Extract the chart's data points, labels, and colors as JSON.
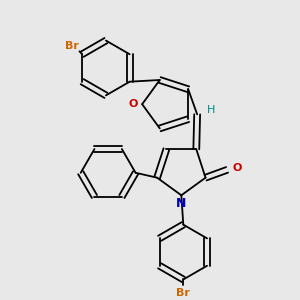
{
  "background_color": "#e8e8e8",
  "bond_color": "#000000",
  "atom_colors": {
    "Br_top": "#cc6600",
    "Br_bottom": "#cc6600",
    "O_furan": "#cc0000",
    "N": "#0000bb",
    "O_carbonyl": "#cc0000",
    "H": "#008888",
    "C": "#000000"
  },
  "figsize": [
    3.0,
    3.0
  ],
  "dpi": 100
}
